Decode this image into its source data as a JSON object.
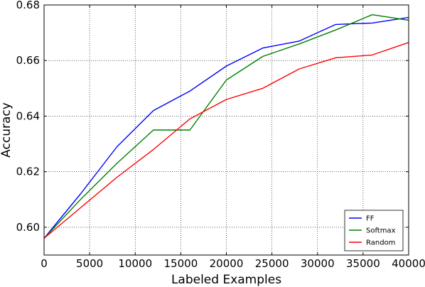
{
  "chart_data": {
    "type": "line",
    "title": "",
    "xlabel": "Labeled Examples",
    "ylabel": "Accuracy",
    "xlim": [
      0,
      40000
    ],
    "ylim": [
      0.59,
      0.68
    ],
    "xticks": [
      0,
      5000,
      10000,
      15000,
      20000,
      25000,
      30000,
      35000,
      40000
    ],
    "xtick_labels": [
      "0",
      "5000",
      "10000",
      "15000",
      "20000",
      "25000",
      "30000",
      "35000",
      "40000"
    ],
    "yticks": [
      0.6,
      0.62,
      0.64,
      0.66,
      0.68
    ],
    "ytick_labels": [
      "0.60",
      "0.62",
      "0.64",
      "0.66",
      "0.68"
    ],
    "grid": true,
    "legend_position": "bottom-right",
    "series": [
      {
        "name": "FF",
        "color": "#0000ff",
        "x": [
          0,
          4000,
          8000,
          12000,
          16000,
          20000,
          24000,
          28000,
          32000,
          36000,
          40000
        ],
        "y": [
          0.596,
          0.612,
          0.629,
          0.642,
          0.649,
          0.658,
          0.6645,
          0.667,
          0.673,
          0.6735,
          0.6755
        ]
      },
      {
        "name": "Softmax",
        "color": "#008000",
        "x": [
          0,
          4000,
          8000,
          12000,
          16000,
          20000,
          24000,
          28000,
          32000,
          36000,
          40000
        ],
        "y": [
          0.596,
          0.61,
          0.623,
          0.635,
          0.635,
          0.653,
          0.6615,
          0.666,
          0.671,
          0.6765,
          0.6745
        ]
      },
      {
        "name": "Random",
        "color": "#ff0000",
        "x": [
          0,
          4000,
          8000,
          12000,
          16000,
          20000,
          24000,
          28000,
          32000,
          36000,
          40000
        ],
        "y": [
          0.596,
          0.607,
          0.618,
          0.628,
          0.639,
          0.646,
          0.65,
          0.657,
          0.661,
          0.662,
          0.6665
        ]
      }
    ]
  }
}
